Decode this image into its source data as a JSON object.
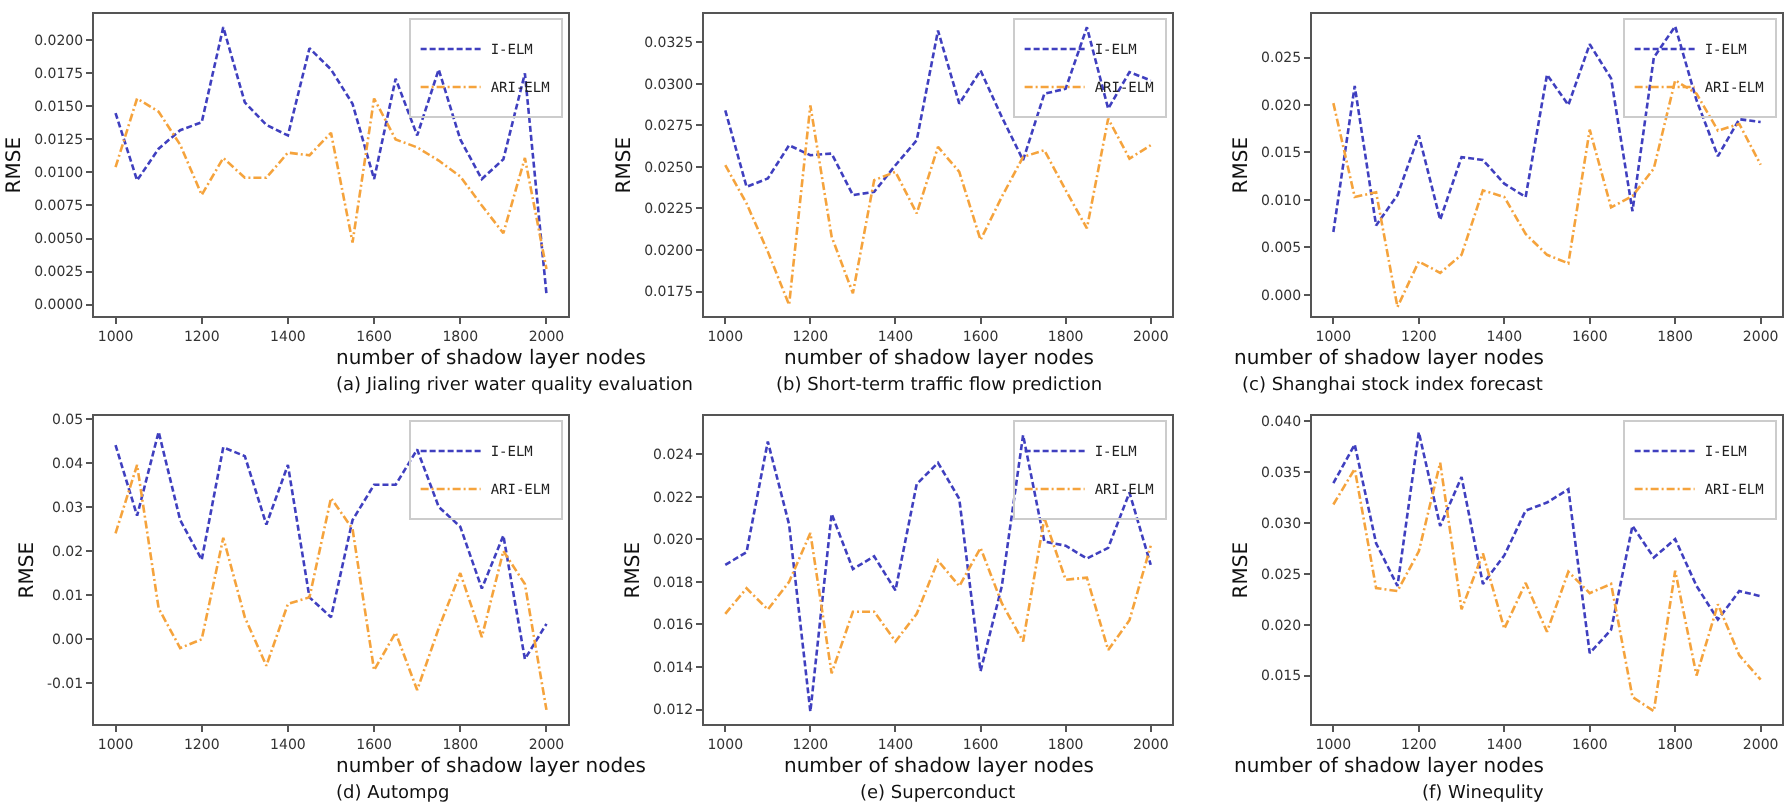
{
  "chart_data": [
    {
      "type": "line",
      "title": "(a) Jialing river water quality evaluation",
      "xlabel": "number of shadow layer nodes",
      "ylabel": "RMSE",
      "legend": "top right",
      "x": [
        1000,
        1050,
        1100,
        1150,
        1200,
        1250,
        1300,
        1350,
        1400,
        1450,
        1500,
        1550,
        1600,
        1650,
        1700,
        1750,
        1800,
        1850,
        1900,
        1950,
        2000
      ],
      "xlim": [
        950,
        2050
      ],
      "xticks": [
        1000,
        1200,
        1400,
        1600,
        1800,
        2000
      ],
      "ylim": [
        -0.0009,
        0.022
      ],
      "yticks": [
        {
          "value": 0,
          "label": "0.0000"
        },
        {
          "value": 0.0025,
          "label": "0.0025"
        },
        {
          "value": 0.005,
          "label": "0.0050"
        },
        {
          "value": 0.0075,
          "label": "0.0075"
        },
        {
          "value": 0.01,
          "label": "0.0100"
        },
        {
          "value": 0.0125,
          "label": "0.0125"
        },
        {
          "value": 0.015,
          "label": "0.0150"
        },
        {
          "value": 0.0175,
          "label": "0.0175"
        },
        {
          "value": 0.02,
          "label": "0.0200"
        }
      ],
      "series": [
        {
          "name": "I-ELM",
          "color": "#3f3fbf",
          "line_style": "dashed",
          "values": [
            0.0145,
            0.0094,
            0.0118,
            0.0132,
            0.0138,
            0.021,
            0.0153,
            0.0136,
            0.0128,
            0.0194,
            0.0178,
            0.0152,
            0.0095,
            0.0171,
            0.0128,
            0.0178,
            0.0125,
            0.0095,
            0.011,
            0.0175,
            0.0008
          ]
        },
        {
          "name": "ARI-ELM",
          "color": "#f5a33c",
          "line_style": "dashdot",
          "values": [
            0.0104,
            0.0156,
            0.0146,
            0.0121,
            0.0083,
            0.0111,
            0.0096,
            0.0096,
            0.0115,
            0.0113,
            0.013,
            0.0047,
            0.0156,
            0.0125,
            0.0119,
            0.0109,
            0.0097,
            0.0075,
            0.0054,
            0.0111,
            0.0027
          ]
        }
      ]
    },
    {
      "type": "line",
      "title": "(b) Short-term traffic flow prediction",
      "xlabel": "number of shadow layer nodes",
      "ylabel": "RMSE",
      "legend": "top right",
      "x": [
        1000,
        1050,
        1100,
        1150,
        1200,
        1250,
        1300,
        1350,
        1400,
        1450,
        1500,
        1550,
        1600,
        1650,
        1700,
        1750,
        1800,
        1850,
        1900,
        1950,
        2000
      ],
      "xlim": [
        950,
        2050
      ],
      "xticks": [
        1000,
        1200,
        1400,
        1600,
        1800,
        2000
      ],
      "ylim": [
        0.016,
        0.0342
      ],
      "yticks": [
        {
          "value": 0.0175,
          "label": "0.0175"
        },
        {
          "value": 0.02,
          "label": "0.0200"
        },
        {
          "value": 0.0225,
          "label": "0.0225"
        },
        {
          "value": 0.025,
          "label": "0.0250"
        },
        {
          "value": 0.0275,
          "label": "0.0275"
        },
        {
          "value": 0.03,
          "label": "0.0300"
        },
        {
          "value": 0.0325,
          "label": "0.0325"
        }
      ],
      "series": [
        {
          "name": "I-ELM",
          "color": "#3f3fbf",
          "line_style": "dashed",
          "values": [
            0.0284,
            0.0238,
            0.0243,
            0.0263,
            0.0257,
            0.0258,
            0.0233,
            0.0235,
            0.0251,
            0.0266,
            0.0332,
            0.0288,
            0.0308,
            0.028,
            0.0254,
            0.0294,
            0.0297,
            0.0334,
            0.0285,
            0.0307,
            0.0302
          ]
        },
        {
          "name": "ARI-ELM",
          "color": "#f5a33c",
          "line_style": "dashdot",
          "values": [
            0.0251,
            0.0228,
            0.0199,
            0.0167,
            0.0287,
            0.0208,
            0.0174,
            0.0242,
            0.0247,
            0.0222,
            0.0262,
            0.0247,
            0.0206,
            0.0232,
            0.0256,
            0.026,
            0.0236,
            0.0213,
            0.0279,
            0.0255,
            0.0263
          ]
        }
      ]
    },
    {
      "type": "line",
      "title": "(c) Shanghai stock index forecast",
      "xlabel": "number of shadow layer nodes",
      "ylabel": "RMSE",
      "legend": "top right",
      "x": [
        1000,
        1050,
        1100,
        1150,
        1200,
        1250,
        1300,
        1350,
        1400,
        1450,
        1500,
        1550,
        1600,
        1650,
        1700,
        1750,
        1800,
        1850,
        1900,
        1950,
        2000
      ],
      "xlim": [
        950,
        2050
      ],
      "xticks": [
        1000,
        1200,
        1400,
        1600,
        1800,
        2000
      ],
      "ylim": [
        -0.0023,
        0.0296
      ],
      "yticks": [
        {
          "value": 0,
          "label": "0.000"
        },
        {
          "value": 0.005,
          "label": "0.005"
        },
        {
          "value": 0.01,
          "label": "0.010"
        },
        {
          "value": 0.015,
          "label": "0.015"
        },
        {
          "value": 0.02,
          "label": "0.020"
        },
        {
          "value": 0.025,
          "label": "0.025"
        }
      ],
      "series": [
        {
          "name": "I-ELM",
          "color": "#3f3fbf",
          "line_style": "dashed",
          "values": [
            0.0066,
            0.022,
            0.0073,
            0.0105,
            0.0168,
            0.0079,
            0.0145,
            0.0142,
            0.0117,
            0.0103,
            0.0232,
            0.02,
            0.0264,
            0.0228,
            0.0088,
            0.025,
            0.0283,
            0.0205,
            0.0146,
            0.0185,
            0.0182
          ]
        },
        {
          "name": "ARI-ELM",
          "color": "#f5a33c",
          "line_style": "dashdot",
          "values": [
            0.0202,
            0.0103,
            0.0108,
            -0.0013,
            0.0035,
            0.0023,
            0.0042,
            0.011,
            0.0103,
            0.0064,
            0.0042,
            0.0033,
            0.0174,
            0.0092,
            0.0104,
            0.0133,
            0.0226,
            0.0212,
            0.0173,
            0.018,
            0.0137
          ]
        }
      ]
    },
    {
      "type": "line",
      "title": "(d) Autompg",
      "xlabel": "number of shadow layer nodes",
      "ylabel": "RMSE",
      "legend": "top right",
      "x": [
        1000,
        1050,
        1100,
        1150,
        1200,
        1250,
        1300,
        1350,
        1400,
        1450,
        1500,
        1550,
        1600,
        1650,
        1700,
        1750,
        1800,
        1850,
        1900,
        1950,
        2000
      ],
      "xlim": [
        950,
        2050
      ],
      "xticks": [
        1000,
        1200,
        1400,
        1600,
        1800,
        2000
      ],
      "ylim": [
        -0.0193,
        0.0506
      ],
      "yticks": [
        {
          "value": -0.01,
          "label": "-0.01"
        },
        {
          "value": 0,
          "label": "0.00"
        },
        {
          "value": 0.01,
          "label": "0.01"
        },
        {
          "value": 0.02,
          "label": "0.02"
        },
        {
          "value": 0.03,
          "label": "0.03"
        },
        {
          "value": 0.04,
          "label": "0.04"
        },
        {
          "value": 0.05,
          "label": "0.05"
        }
      ],
      "series": [
        {
          "name": "I-ELM",
          "color": "#3f3fbf",
          "line_style": "dashed",
          "values": [
            0.044,
            0.028,
            0.047,
            0.027,
            0.018,
            0.0435,
            0.0415,
            0.026,
            0.0395,
            0.0095,
            0.005,
            0.027,
            0.035,
            0.035,
            0.043,
            0.03,
            0.0255,
            0.0115,
            0.0235,
            -0.0045,
            0.0035
          ]
        },
        {
          "name": "ARI-ELM",
          "color": "#f5a33c",
          "line_style": "dashdot",
          "values": [
            0.024,
            0.0395,
            0.007,
            -0.002,
            0.0,
            0.023,
            0.005,
            -0.006,
            0.008,
            0.0095,
            0.032,
            0.025,
            -0.007,
            0.0015,
            -0.0115,
            0.0025,
            0.015,
            0.0005,
            0.02,
            0.0125,
            -0.016
          ]
        }
      ]
    },
    {
      "type": "line",
      "title": "(e) Superconduct",
      "xlabel": "number of shadow layer nodes",
      "ylabel": "RMSE",
      "legend": "top right",
      "x": [
        1000,
        1050,
        1100,
        1150,
        1200,
        1250,
        1300,
        1350,
        1400,
        1450,
        1500,
        1550,
        1600,
        1650,
        1700,
        1750,
        1800,
        1850,
        1900,
        1950,
        2000
      ],
      "xlim": [
        950,
        2050
      ],
      "xticks": [
        1000,
        1200,
        1400,
        1600,
        1800,
        2000
      ],
      "ylim": [
        0.0113,
        0.0258
      ],
      "yticks": [
        {
          "value": 0.012,
          "label": "0.012"
        },
        {
          "value": 0.014,
          "label": "0.014"
        },
        {
          "value": 0.016,
          "label": "0.016"
        },
        {
          "value": 0.018,
          "label": "0.018"
        },
        {
          "value": 0.02,
          "label": "0.020"
        },
        {
          "value": 0.022,
          "label": "0.022"
        },
        {
          "value": 0.024,
          "label": "0.024"
        }
      ],
      "series": [
        {
          "name": "I-ELM",
          "color": "#3f3fbf",
          "line_style": "dashed",
          "values": [
            0.0188,
            0.0194,
            0.0246,
            0.0207,
            0.0119,
            0.0212,
            0.0186,
            0.0192,
            0.0176,
            0.0226,
            0.0236,
            0.0219,
            0.0138,
            0.0178,
            0.0249,
            0.0199,
            0.0197,
            0.0191,
            0.0196,
            0.0222,
            0.0188
          ]
        },
        {
          "name": "ARI-ELM",
          "color": "#f5a33c",
          "line_style": "dashdot",
          "values": [
            0.0165,
            0.0177,
            0.0167,
            0.018,
            0.0203,
            0.0137,
            0.0166,
            0.0166,
            0.0152,
            0.0165,
            0.019,
            0.0178,
            0.0196,
            0.017,
            0.0152,
            0.021,
            0.0181,
            0.0182,
            0.0148,
            0.0162,
            0.0197
          ]
        }
      ]
    },
    {
      "type": "line",
      "title": "(f) Winequlity",
      "xlabel": "number of shadow layer nodes",
      "ylabel": "RMSE",
      "legend": "top right",
      "x": [
        1000,
        1050,
        1100,
        1150,
        1200,
        1250,
        1300,
        1350,
        1400,
        1450,
        1500,
        1550,
        1600,
        1650,
        1700,
        1750,
        1800,
        1850,
        1900,
        1950,
        2000
      ],
      "xlim": [
        950,
        2050
      ],
      "xticks": [
        1000,
        1200,
        1400,
        1600,
        1800,
        2000
      ],
      "ylim": [
        0.0102,
        0.0405
      ],
      "yticks": [
        {
          "value": 0.015,
          "label": "0.015"
        },
        {
          "value": 0.02,
          "label": "0.020"
        },
        {
          "value": 0.025,
          "label": "0.025"
        },
        {
          "value": 0.03,
          "label": "0.030"
        },
        {
          "value": 0.035,
          "label": "0.035"
        },
        {
          "value": 0.04,
          "label": "0.040"
        }
      ],
      "series": [
        {
          "name": "I-ELM",
          "color": "#3f3fbf",
          "line_style": "dashed",
          "values": [
            0.0339,
            0.0377,
            0.028,
            0.0238,
            0.0389,
            0.0297,
            0.0345,
            0.024,
            0.0268,
            0.0312,
            0.032,
            0.0333,
            0.0172,
            0.0195,
            0.0297,
            0.0266,
            0.0284,
            0.0238,
            0.0205,
            0.0233,
            0.0228
          ]
        },
        {
          "name": "ARI-ELM",
          "color": "#f5a33c",
          "line_style": "dashdot",
          "values": [
            0.0318,
            0.0353,
            0.0236,
            0.0233,
            0.0272,
            0.0359,
            0.0215,
            0.027,
            0.0196,
            0.0241,
            0.0193,
            0.0252,
            0.0231,
            0.024,
            0.0129,
            0.0115,
            0.0253,
            0.015,
            0.022,
            0.017,
            0.0146
          ]
        }
      ]
    }
  ]
}
